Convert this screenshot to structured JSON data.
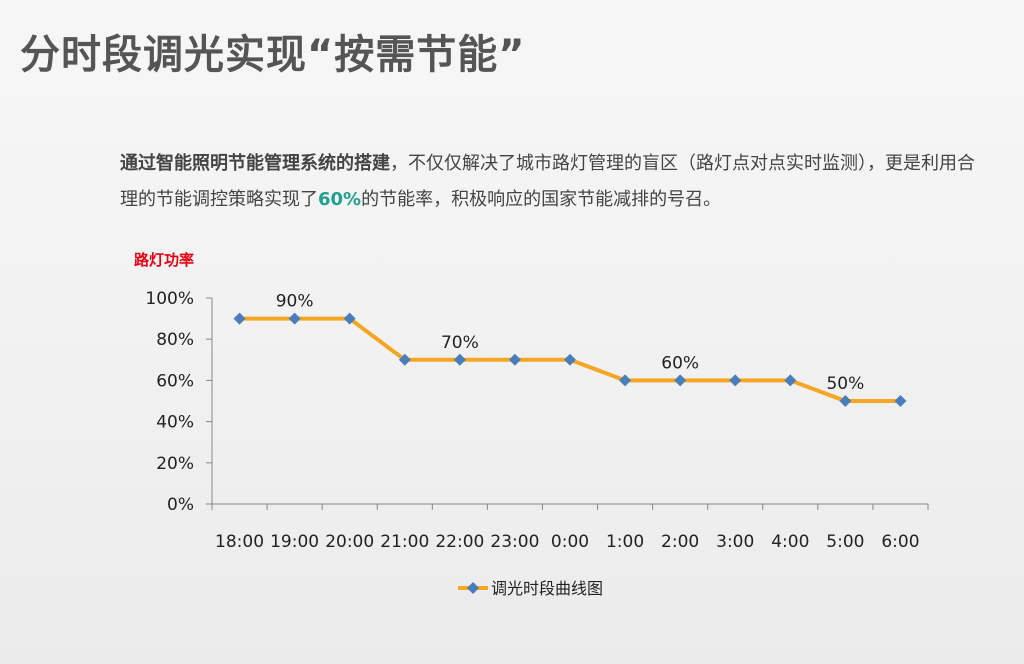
{
  "slide": {
    "title": "分时段调光实现“按需节能”",
    "description": {
      "bold_lead": "通过智能照明节能管理系统的搭建",
      "text_1": "，不仅仅解决了城市路灯管理的盲区（路灯点对点实时监测），更是利用合理的节能调控策略实现了",
      "highlight": "60%",
      "text_2": "的节能率，积极响应的国家节能减排的号召。"
    }
  },
  "colors": {
    "line": "#f5a623",
    "marker": "#4a7ebb",
    "ylabel": "#e60012",
    "highlight": "#21a08f"
  },
  "chart_data": {
    "type": "line",
    "ylabel": "路灯功率",
    "xlabel": "",
    "categories": [
      "18:00",
      "19:00",
      "20:00",
      "21:00",
      "22:00",
      "23:00",
      "0:00",
      "1:00",
      "2:00",
      "3:00",
      "4:00",
      "5:00",
      "6:00"
    ],
    "series": [
      {
        "name": "调光时段曲线图",
        "values": [
          90,
          90,
          90,
          70,
          70,
          70,
          70,
          60,
          60,
          60,
          60,
          50,
          50
        ]
      }
    ],
    "ylim": [
      0,
      100
    ],
    "yticks": [
      "0%",
      "20%",
      "40%",
      "60%",
      "80%",
      "100%"
    ],
    "annotations": [
      {
        "category": "19:00",
        "value": 90,
        "text": "90%"
      },
      {
        "category": "22:00",
        "value": 70,
        "text": "70%"
      },
      {
        "category": "2:00",
        "value": 60,
        "text": "60%"
      },
      {
        "category": "5:00",
        "value": 50,
        "text": "50%"
      }
    ],
    "grid": false,
    "legend_position": "bottom",
    "marker": "diamond"
  }
}
